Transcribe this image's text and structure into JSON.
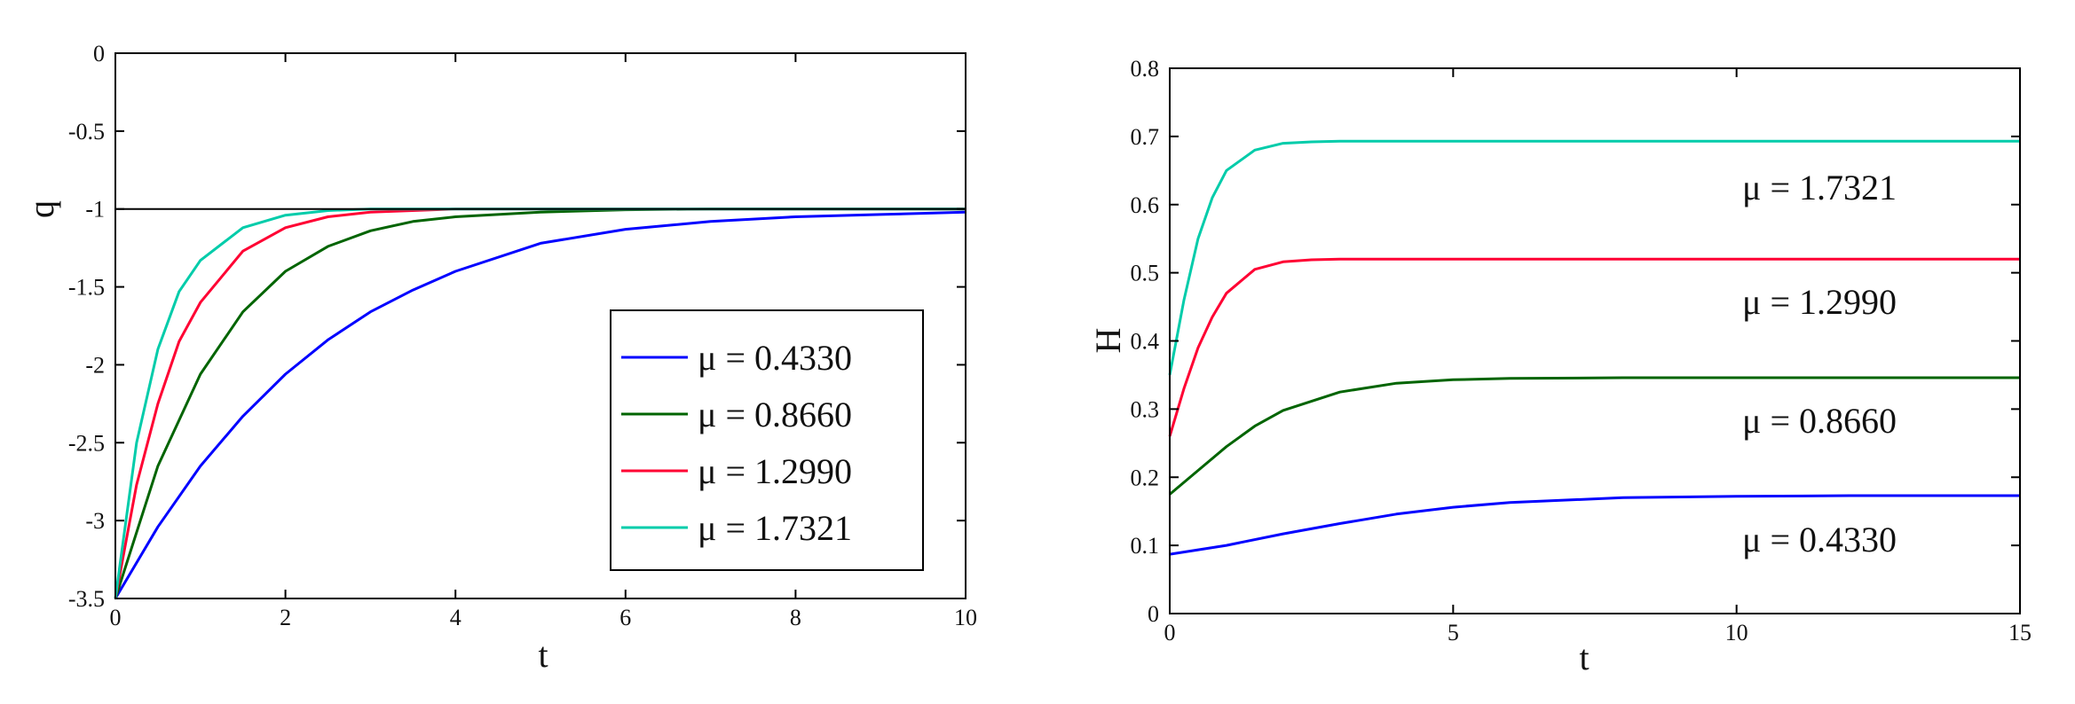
{
  "chart_data": [
    {
      "type": "line",
      "xlabel": "t",
      "ylabel": "q",
      "xlim": [
        0,
        10
      ],
      "ylim": [
        -3.5,
        0
      ],
      "xticks": [
        "0",
        "2",
        "4",
        "6",
        "8",
        "10"
      ],
      "yticks": [
        "0",
        "-0.5",
        "-1",
        "-1.5",
        "-2",
        "-2.5",
        "-3",
        "-3.5"
      ],
      "grid": false,
      "legend": "inside, bottom-right",
      "reference_line": {
        "y": -1,
        "color": "#000000"
      },
      "series": [
        {
          "name": "μ = 0.4330",
          "color": "#0000ff",
          "x": [
            0,
            0.5,
            1,
            1.5,
            2,
            2.5,
            3,
            3.5,
            4,
            5,
            6,
            7,
            8,
            9,
            10
          ],
          "y": [
            -3.5,
            -3.04,
            -2.65,
            -2.33,
            -2.06,
            -1.84,
            -1.66,
            -1.52,
            -1.4,
            -1.22,
            -1.13,
            -1.08,
            -1.05,
            -1.035,
            -1.02
          ]
        },
        {
          "name": "μ = 0.8660",
          "color": "#006400",
          "x": [
            0,
            0.5,
            1,
            1.5,
            2,
            2.5,
            3,
            3.5,
            4,
            5,
            6,
            7,
            8,
            9,
            10
          ],
          "y": [
            -3.5,
            -2.65,
            -2.06,
            -1.66,
            -1.4,
            -1.24,
            -1.14,
            -1.08,
            -1.05,
            -1.02,
            -1.005,
            -1.0,
            -1.0,
            -1.0,
            -1.0
          ]
        },
        {
          "name": "μ = 1.2990",
          "color": "#ff0033",
          "x": [
            0,
            0.25,
            0.5,
            0.75,
            1,
            1.5,
            2,
            2.5,
            3,
            4,
            5,
            10
          ],
          "y": [
            -3.5,
            -2.77,
            -2.25,
            -1.85,
            -1.6,
            -1.27,
            -1.12,
            -1.05,
            -1.02,
            -1.0,
            -1.0,
            -1.0
          ]
        },
        {
          "name": "μ = 1.7321",
          "color": "#00ccaa",
          "x": [
            0,
            0.25,
            0.5,
            0.75,
            1,
            1.5,
            2,
            2.5,
            3,
            4,
            10
          ],
          "y": [
            -3.5,
            -2.5,
            -1.9,
            -1.53,
            -1.33,
            -1.12,
            -1.04,
            -1.01,
            -1.0,
            -1.0,
            -1.0
          ]
        }
      ]
    },
    {
      "type": "line",
      "xlabel": "t",
      "ylabel": "H",
      "xlim": [
        0,
        15
      ],
      "ylim": [
        0,
        0.8
      ],
      "xticks": [
        "0",
        "5",
        "10",
        "15"
      ],
      "yticks": [
        "0",
        "0.1",
        "0.2",
        "0.3",
        "0.4",
        "0.5",
        "0.6",
        "0.7",
        "0.8"
      ],
      "grid": false,
      "annotations": [
        "μ = 1.7321",
        "μ = 1.2990",
        "μ = 0.8660",
        "μ = 0.4330"
      ],
      "series": [
        {
          "color": "#0000ff",
          "x": [
            0,
            1,
            2,
            3,
            4,
            5,
            6,
            8,
            10,
            12,
            15
          ],
          "y": [
            0.087,
            0.1,
            0.117,
            0.132,
            0.146,
            0.156,
            0.163,
            0.17,
            0.172,
            0.173,
            0.173
          ]
        },
        {
          "color": "#006400",
          "x": [
            0,
            0.5,
            1,
            1.5,
            2,
            3,
            4,
            5,
            6,
            8,
            10,
            15
          ],
          "y": [
            0.175,
            0.21,
            0.245,
            0.275,
            0.298,
            0.325,
            0.338,
            0.343,
            0.345,
            0.346,
            0.346,
            0.346
          ]
        },
        {
          "color": "#ff0033",
          "x": [
            0,
            0.25,
            0.5,
            0.75,
            1,
            1.5,
            2,
            2.5,
            3,
            4,
            15
          ],
          "y": [
            0.26,
            0.33,
            0.39,
            0.435,
            0.47,
            0.505,
            0.516,
            0.519,
            0.52,
            0.52,
            0.52
          ]
        },
        {
          "color": "#00ccaa",
          "x": [
            0,
            0.25,
            0.5,
            0.75,
            1,
            1.5,
            2,
            2.5,
            3,
            4,
            15
          ],
          "y": [
            0.35,
            0.46,
            0.55,
            0.61,
            0.65,
            0.68,
            0.69,
            0.692,
            0.693,
            0.693,
            0.693
          ]
        }
      ]
    }
  ]
}
